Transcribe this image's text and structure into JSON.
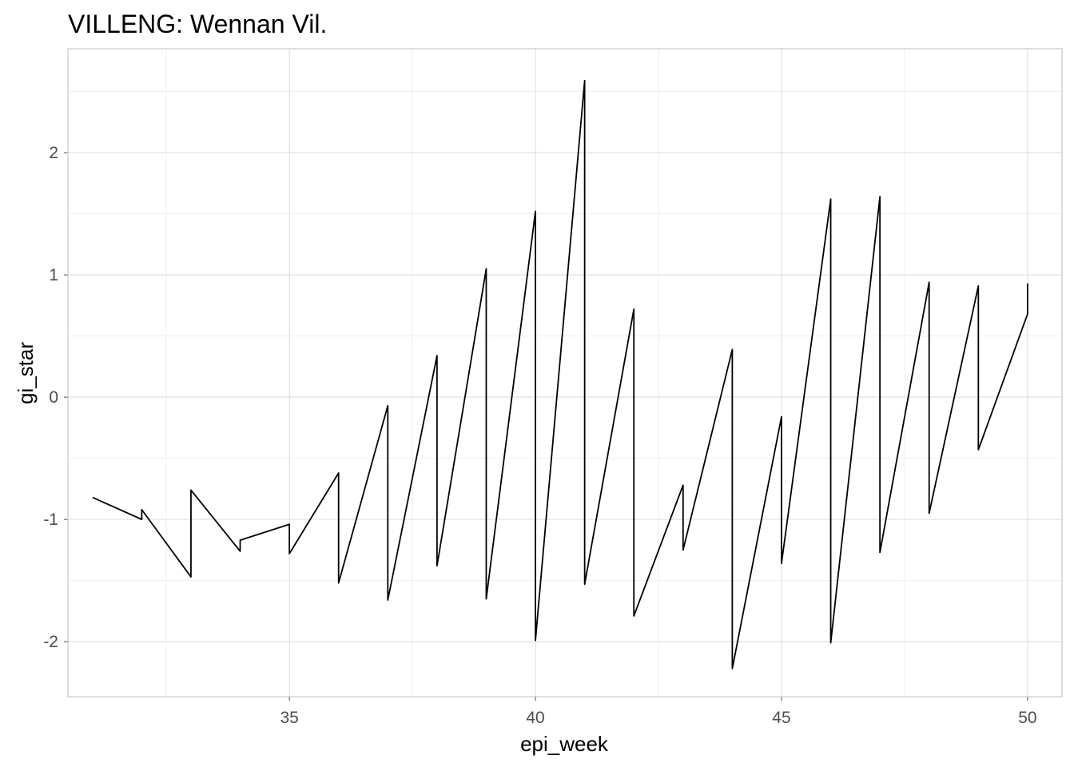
{
  "chart_data": {
    "type": "line",
    "title": "VILLENG: Wennan Vil.",
    "xlabel": "epi_week",
    "ylabel": "gi_star",
    "xlim": [
      30.5,
      50.7
    ],
    "ylim": [
      -2.45,
      2.85
    ],
    "x_ticks": [
      35,
      40,
      45,
      50
    ],
    "x_tick_labels": [
      "35",
      "40",
      "45",
      "50"
    ],
    "y_ticks": [
      -2,
      -1,
      0,
      1,
      2
    ],
    "y_tick_labels": [
      "-2",
      "-1",
      "0",
      "1",
      "2"
    ],
    "grid": true,
    "legend": "none",
    "line_color": "#000000",
    "series": [
      {
        "x": [
          31,
          32,
          32,
          33,
          33,
          34,
          34,
          35,
          35,
          36,
          36,
          37,
          37,
          38,
          38,
          39,
          39,
          40,
          40,
          41,
          41,
          42,
          42,
          43,
          43,
          44,
          44,
          45,
          45,
          46,
          46,
          47,
          47,
          48,
          48,
          49,
          49,
          50,
          50
        ],
        "values": [
          -0.82,
          -1.0,
          -0.92,
          -1.47,
          -0.76,
          -1.26,
          -1.17,
          -1.04,
          -1.28,
          -0.62,
          -1.52,
          -0.07,
          -1.66,
          0.34,
          -1.38,
          1.05,
          -1.65,
          1.52,
          -1.99,
          2.59,
          -1.53,
          0.72,
          -1.79,
          -0.72,
          -1.25,
          0.39,
          -2.22,
          -0.16,
          -1.36,
          1.62,
          -2.01,
          1.64,
          -1.27,
          0.94,
          -0.95,
          0.91,
          -0.43,
          0.68,
          0.93
        ]
      }
    ]
  }
}
